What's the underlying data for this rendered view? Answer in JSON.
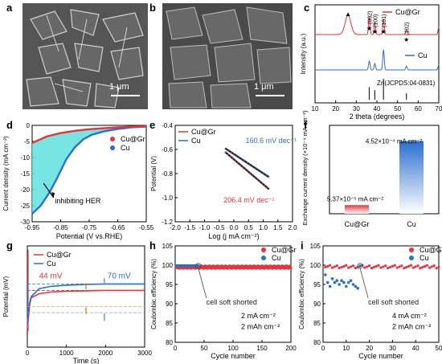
{
  "panels": {
    "a": {
      "label": "a",
      "scale": "1 μm"
    },
    "b": {
      "label": "b",
      "scale": "1 μm"
    },
    "c": {
      "label": "c"
    },
    "d": {
      "label": "d"
    },
    "e": {
      "label": "e"
    },
    "f": {
      "label": "f"
    },
    "g": {
      "label": "g"
    },
    "h": {
      "label": "h"
    },
    "i": {
      "label": "i"
    }
  },
  "colors": {
    "red": "#e8323c",
    "blue": "#2a6fcf",
    "black": "#222222",
    "teal": "#5fe0dc",
    "cyan_band": "#67d9df"
  },
  "chart_data": [
    {
      "id": "c",
      "type": "line",
      "xlabel": "2 theta (degrees)",
      "ylabel": "Intensity (a.u.)",
      "xlim": [
        10,
        70
      ],
      "xticks": [
        10,
        20,
        30,
        40,
        50,
        60,
        70
      ],
      "series": [
        {
          "name": "Cu@Gr",
          "peaks": [
            [
              26,
              0.75
            ],
            [
              36.3,
              0.7
            ],
            [
              39,
              0.5
            ],
            [
              43.2,
              0.6
            ],
            [
              54.3,
              0.2
            ],
            [
              70,
              0.3
            ]
          ]
        },
        {
          "name": "Cu",
          "peaks": [
            [
              36.3,
              0.35
            ],
            [
              39,
              0.25
            ],
            [
              43.2,
              0.8
            ],
            [
              54.3,
              0.15
            ],
            [
              70,
              0.2
            ]
          ]
        }
      ],
      "reference": {
        "label": "Zn(JCPDS:04-0831)",
        "lines": [
          [
            36.3,
            0.6
          ],
          [
            39,
            0.45
          ],
          [
            43.2,
            1.0
          ],
          [
            54.3,
            0.3
          ],
          [
            70,
            0.4
          ]
        ]
      },
      "annotations": [
        "▲",
        "★",
        "★",
        "★",
        "★",
        "(002)",
        "(100)",
        "(101)",
        "(102)"
      ]
    },
    {
      "id": "d",
      "type": "line",
      "xlabel": "Potential (V vs.RHE)",
      "ylabel": "Current density (mA cm⁻²)",
      "xlim": [
        -0.95,
        -0.55
      ],
      "ylim": [
        -30,
        0
      ],
      "xticks": [
        "-0.95",
        "-0.85",
        "-0.75",
        "-0.65",
        "-0.55"
      ],
      "yticks": [
        "0",
        "-5",
        "-10",
        "-15",
        "-20",
        "-25",
        "-30"
      ],
      "series": [
        {
          "name": "Cu@Gr",
          "x": [
            -0.95,
            -0.9,
            -0.85,
            -0.8,
            -0.75,
            -0.7,
            -0.65,
            -0.6,
            -0.55
          ],
          "y": [
            -5.5,
            -3.5,
            -2.4,
            -1.7,
            -1.2,
            -0.9,
            -0.6,
            -0.4,
            -0.3
          ]
        },
        {
          "name": "Cu",
          "x": [
            -0.95,
            -0.92,
            -0.89,
            -0.86,
            -0.83,
            -0.8,
            -0.77,
            -0.74,
            -0.7,
            -0.65,
            -0.6,
            -0.55
          ],
          "y": [
            -27.5,
            -25,
            -21,
            -16,
            -10.5,
            -6.8,
            -4.3,
            -2.9,
            -1.9,
            -1.1,
            -0.6,
            -0.4
          ]
        }
      ],
      "annotation": "inhibiting HER"
    },
    {
      "id": "e",
      "type": "line",
      "xlabel": "Log (j mA cm⁻²)",
      "ylabel": "Potential (V)",
      "xlim": [
        -2.0,
        2.0
      ],
      "ylim": [
        -1.2,
        -0.4
      ],
      "xticks": [
        "-2.0",
        "-1.5",
        "-1.0",
        "-0.5",
        "0.0",
        "0.5",
        "1.0",
        "1.5",
        "2.0"
      ],
      "yticks": [
        "-0.4",
        "-0.6",
        "-0.8",
        "-1.0",
        "-1.2"
      ],
      "series": [
        {
          "name": "Cu@Gr",
          "x": [
            -0.3,
            1.2
          ],
          "y": [
            -0.62,
            -0.93
          ]
        },
        {
          "name": "Cu",
          "x": [
            -0.3,
            1.2
          ],
          "y": [
            -0.59,
            -0.83
          ]
        }
      ],
      "annotations": [
        "160.6 mV dec⁻¹",
        "206.4 mV dec⁻¹"
      ]
    },
    {
      "id": "f",
      "type": "bar",
      "ylabel": "Exchange current density (×10⁻⁴ mA cm⁻²)",
      "categories": [
        "Cu@Gr",
        "Cu"
      ],
      "values": [
        0.537,
        4.52
      ],
      "ylim": [
        0,
        5.5
      ],
      "data_labels": [
        "5.37×10⁻⁵ mA cm⁻²",
        "4.52×10⁻⁴ mA cm⁻²"
      ]
    },
    {
      "id": "g",
      "type": "line",
      "xlabel": "Time (s)",
      "ylabel": "Potential (mV)",
      "xlim": [
        0,
        3000
      ],
      "ylim": [
        -200,
        50
      ],
      "xticks": [
        "0",
        "1000",
        "2000",
        "3000"
      ],
      "series": [
        {
          "name": "Cu@Gr",
          "x": [
            0,
            30,
            60,
            100,
            300,
            600,
            1000,
            1500,
            2000,
            2500,
            3000
          ],
          "y": [
            -155,
            -125,
            -95,
            -78,
            -68,
            -64,
            -62,
            -61,
            -60,
            -60,
            -60
          ]
        },
        {
          "name": "Cu",
          "x": [
            0,
            30,
            60,
            100,
            300,
            600,
            1000,
            1500,
            2000,
            2500,
            3000
          ],
          "y": [
            -140,
            -110,
            -90,
            -75,
            -56,
            -50,
            -47,
            -45,
            -44,
            -44,
            -44
          ]
        }
      ],
      "annotations": [
        "44 mV",
        "70 mV"
      ]
    },
    {
      "id": "h",
      "type": "scatter",
      "xlabel": "Cycle number",
      "ylabel": "Coulombic efficiency (%)",
      "xlim": [
        0,
        200
      ],
      "ylim": [
        80,
        105
      ],
      "xticks": [
        "0",
        "50",
        "100",
        "150",
        "200"
      ],
      "yticks": [
        "80",
        "85",
        "90",
        "95",
        "100",
        "105"
      ],
      "series": [
        {
          "name": "Cu@Gr",
          "x_range": [
            1,
            200
          ],
          "y": 99.5
        },
        {
          "name": "Cu",
          "x_range": [
            1,
            40
          ],
          "y": 99.9
        }
      ],
      "annotations": [
        "cell soft shorted",
        "2 mA cm⁻²",
        "2 mAh cm⁻²"
      ]
    },
    {
      "id": "i",
      "type": "scatter",
      "xlabel": "Cycle number",
      "ylabel": "Coulombic efficiency (%)",
      "xlim": [
        0,
        50
      ],
      "ylim": [
        80,
        105
      ],
      "xticks": [
        "0",
        "10",
        "20",
        "30",
        "40",
        "50"
      ],
      "yticks": [
        "80",
        "85",
        "90",
        "95",
        "100",
        "105"
      ],
      "series": [
        {
          "name": "Cu@Gr",
          "x_range": [
            1,
            50
          ],
          "y": 99.6
        },
        {
          "name": "Cu",
          "x": [
            1,
            2,
            3,
            4,
            5,
            6,
            7,
            8,
            9,
            10,
            11,
            12,
            13,
            14,
            15,
            16
          ],
          "y": [
            97.5,
            95.5,
            94.5,
            96.5,
            95.5,
            96,
            95,
            96,
            95.5,
            94.5,
            95.5,
            96,
            95,
            94.5,
            94,
            99.8
          ]
        }
      ],
      "annotations": [
        "cell soft shorted",
        "4 mA cm⁻²",
        "2 mAh cm⁻²"
      ]
    }
  ]
}
